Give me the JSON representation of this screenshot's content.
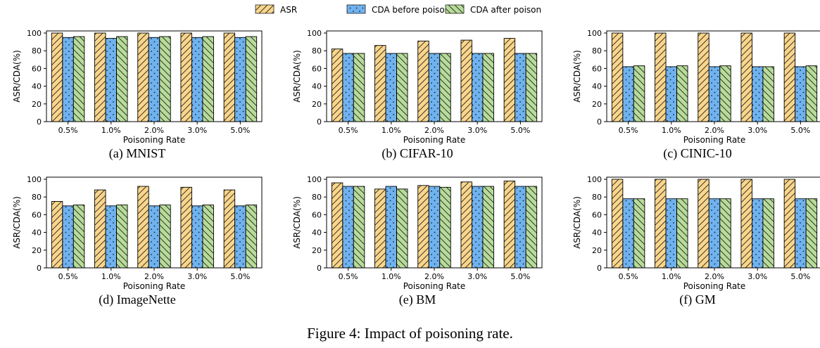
{
  "figure_caption": "Figure 4: Impact of poisoning rate.",
  "legend": [
    {
      "name": "ASR",
      "color": "#FAD58A",
      "pattern": "diag"
    },
    {
      "name": "CDA before poison",
      "color": "#6FB2F0",
      "pattern": "dots"
    },
    {
      "name": "CDA after poison",
      "color": "#B7DC99",
      "pattern": "back"
    }
  ],
  "chart_data": [
    {
      "type": "bar",
      "caption": "(a) MNIST",
      "categories": [
        "0.5%",
        "1.0%",
        "2.0%",
        "3.0%",
        "5.0%"
      ],
      "xlabel": "Poisoning Rate",
      "ylabel": "ASR/CDA(%)",
      "ylim": [
        0,
        100
      ],
      "yticks": [
        "0",
        "20",
        "40",
        "60",
        "80",
        "100"
      ],
      "series": [
        {
          "name": "ASR",
          "values": [
            100,
            100,
            100,
            100,
            100
          ]
        },
        {
          "name": "CDA before poison",
          "values": [
            95,
            94,
            95,
            95,
            95
          ]
        },
        {
          "name": "CDA after poison",
          "values": [
            96,
            96,
            96,
            96,
            96
          ]
        }
      ]
    },
    {
      "type": "bar",
      "caption": "(b) CIFAR-10",
      "categories": [
        "0.5%",
        "1.0%",
        "2.0%",
        "3.0%",
        "5.0%"
      ],
      "xlabel": "Poisoning Rate",
      "ylabel": "ASR/CDA(%)",
      "ylim": [
        0,
        100
      ],
      "yticks": [
        "0",
        "20",
        "40",
        "60",
        "80",
        "100"
      ],
      "series": [
        {
          "name": "ASR",
          "values": [
            82,
            86,
            91,
            92,
            94
          ]
        },
        {
          "name": "CDA before poison",
          "values": [
            77,
            77,
            77,
            77,
            77
          ]
        },
        {
          "name": "CDA after poison",
          "values": [
            77,
            77,
            77,
            77,
            77
          ]
        }
      ]
    },
    {
      "type": "bar",
      "caption": "(c) CINIC-10",
      "categories": [
        "0.5%",
        "1.0%",
        "2.0%",
        "3.0%",
        "5.0%"
      ],
      "xlabel": "Poisoning Rate",
      "ylabel": "ASR/CDA(%)",
      "ylim": [
        0,
        100
      ],
      "yticks": [
        "0",
        "20",
        "40",
        "60",
        "80",
        "100"
      ],
      "series": [
        {
          "name": "ASR",
          "values": [
            100,
            100,
            100,
            100,
            100
          ]
        },
        {
          "name": "CDA before poison",
          "values": [
            62,
            62,
            62,
            62,
            62
          ]
        },
        {
          "name": "CDA after poison",
          "values": [
            63,
            63,
            63,
            62,
            63
          ]
        }
      ]
    },
    {
      "type": "bar",
      "caption": "(d) ImageNette",
      "categories": [
        "0.5%",
        "1.0%",
        "2.0%",
        "3.0%",
        "5.0%"
      ],
      "xlabel": "Poisoning Rate",
      "ylabel": "ASR/CDA(%)",
      "ylim": [
        0,
        100
      ],
      "yticks": [
        "0",
        "20",
        "40",
        "60",
        "80",
        "100"
      ],
      "series": [
        {
          "name": "ASR",
          "values": [
            75,
            88,
            92,
            91,
            88
          ]
        },
        {
          "name": "CDA before poison",
          "values": [
            70,
            70,
            70,
            70,
            70
          ]
        },
        {
          "name": "CDA after poison",
          "values": [
            71,
            71,
            71,
            71,
            71
          ]
        }
      ]
    },
    {
      "type": "bar",
      "caption": "(e) BM",
      "categories": [
        "0.5%",
        "1.0%",
        "2.0%",
        "3.0%",
        "5.0%"
      ],
      "xlabel": "Poisoning Rate",
      "ylabel": "ASR/CDA(%)",
      "ylim": [
        0,
        100
      ],
      "yticks": [
        "0",
        "20",
        "40",
        "60",
        "80",
        "100"
      ],
      "series": [
        {
          "name": "ASR",
          "values": [
            96,
            89,
            93,
            97,
            98
          ]
        },
        {
          "name": "CDA before poison",
          "values": [
            92,
            92,
            92,
            92,
            92
          ]
        },
        {
          "name": "CDA after poison",
          "values": [
            92,
            89,
            91,
            92,
            92
          ]
        }
      ]
    },
    {
      "type": "bar",
      "caption": "(f) GM",
      "categories": [
        "0.5%",
        "1.0%",
        "2.0%",
        "3.0%",
        "5.0%"
      ],
      "xlabel": "Poisoning Rate",
      "ylabel": "ASR/CDA(%)",
      "ylim": [
        0,
        100
      ],
      "yticks": [
        "0",
        "20",
        "40",
        "60",
        "80",
        "100"
      ],
      "series": [
        {
          "name": "ASR",
          "values": [
            100,
            100,
            100,
            100,
            100
          ]
        },
        {
          "name": "CDA before poison",
          "values": [
            78,
            78,
            78,
            78,
            78
          ]
        },
        {
          "name": "CDA after poison",
          "values": [
            78,
            78,
            78,
            78,
            78
          ]
        }
      ]
    }
  ]
}
